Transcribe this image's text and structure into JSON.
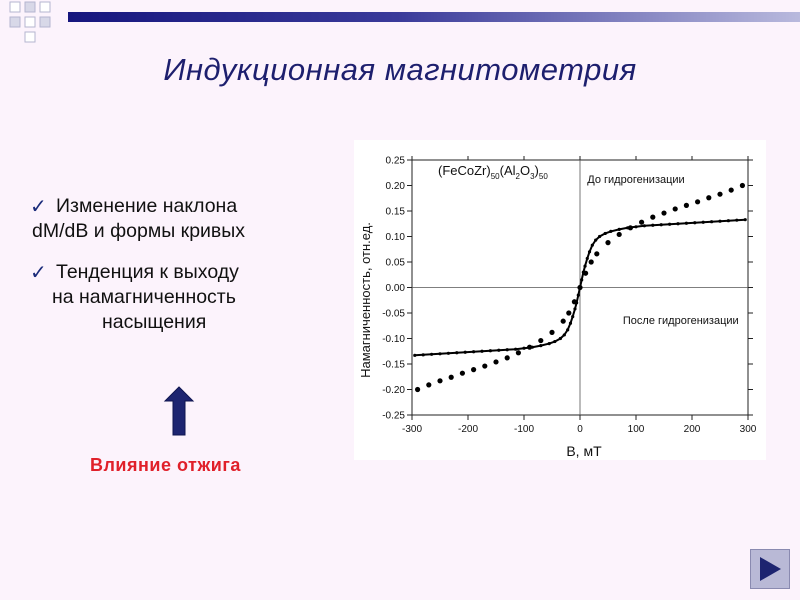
{
  "slide": {
    "title": "Индукционная магнитометрия",
    "bullets": [
      {
        "lines": [
          "Изменение наклона",
          "dM/dB и формы кривых"
        ]
      },
      {
        "lines": [
          "Тенденция к выходу",
          "на намагниченность",
          "насыщения"
        ]
      }
    ],
    "annealing_label": "Влияние отжига",
    "check_glyph": "✓",
    "accent_color": "#1d1f6e",
    "label_color": "#e0202a",
    "icons": [
      "check-icon",
      "up-arrow-icon",
      "next-slide-icon"
    ]
  },
  "chart_data": {
    "type": "scatter",
    "title_parts": {
      "base": "(FeCoZr)",
      "sub1": "50",
      "mid": "(Al",
      "sub2": "2",
      "mid2": "O",
      "sub3": "3",
      "end": ")",
      "sub4": "50"
    },
    "xlabel": "B, мТ",
    "ylabel": "Намагниченность, отн.ед.",
    "xlim": [
      -300,
      300
    ],
    "ylim": [
      -0.25,
      0.25
    ],
    "xticks": [
      "-300",
      "-200",
      "-100",
      "0",
      "100",
      "200",
      "300"
    ],
    "yticks": [
      "-0.25",
      "-0.20",
      "-0.15",
      "-0.10",
      "-0.05",
      "0.00",
      "0.05",
      "0.10",
      "0.15",
      "0.20",
      "0.25"
    ],
    "annotations": [
      {
        "text": "До гидрогенизации",
        "x": 100,
        "y": 0.205
      },
      {
        "text": "После гидрогенизации",
        "x": 180,
        "y": -0.072
      }
    ],
    "series": [
      {
        "marker": "large-dot",
        "x": [
          -290,
          -270,
          -250,
          -230,
          -210,
          -190,
          -170,
          -150,
          -130,
          -110,
          -90,
          -70,
          -50,
          -30,
          -20,
          -10,
          0,
          10,
          20,
          30,
          50,
          70,
          90,
          110,
          130,
          150,
          170,
          190,
          210,
          230,
          250,
          270,
          290
        ],
        "y": [
          -0.2,
          -0.191,
          -0.183,
          -0.176,
          -0.168,
          -0.161,
          -0.154,
          -0.146,
          -0.138,
          -0.128,
          -0.117,
          -0.104,
          -0.088,
          -0.066,
          -0.05,
          -0.028,
          0,
          0.028,
          0.05,
          0.066,
          0.088,
          0.104,
          0.117,
          0.128,
          0.138,
          0.146,
          0.154,
          0.161,
          0.168,
          0.176,
          0.183,
          0.191,
          0.2
        ]
      },
      {
        "marker": "small-dot",
        "x": [
          -295,
          -280,
          -265,
          -250,
          -235,
          -220,
          -205,
          -190,
          -175,
          -160,
          -145,
          -130,
          -115,
          -100,
          -85,
          -70,
          -55,
          -45,
          -35,
          -28,
          -22,
          -17,
          -13,
          -9,
          -6,
          -3,
          0,
          3,
          6,
          9,
          13,
          17,
          22,
          28,
          35,
          45,
          55,
          70,
          85,
          100,
          115,
          130,
          145,
          160,
          175,
          190,
          205,
          220,
          235,
          250,
          265,
          280,
          295
        ],
        "y": [
          -0.133,
          -0.132,
          -0.131,
          -0.13,
          -0.129,
          -0.128,
          -0.127,
          -0.126,
          -0.125,
          -0.124,
          -0.123,
          -0.122,
          -0.121,
          -0.119,
          -0.117,
          -0.114,
          -0.11,
          -0.106,
          -0.1,
          -0.093,
          -0.083,
          -0.07,
          -0.057,
          -0.042,
          -0.03,
          -0.015,
          0,
          0.015,
          0.03,
          0.042,
          0.057,
          0.07,
          0.083,
          0.093,
          0.1,
          0.106,
          0.11,
          0.114,
          0.117,
          0.119,
          0.121,
          0.122,
          0.123,
          0.124,
          0.125,
          0.126,
          0.127,
          0.128,
          0.129,
          0.13,
          0.131,
          0.132,
          0.133
        ]
      }
    ]
  }
}
